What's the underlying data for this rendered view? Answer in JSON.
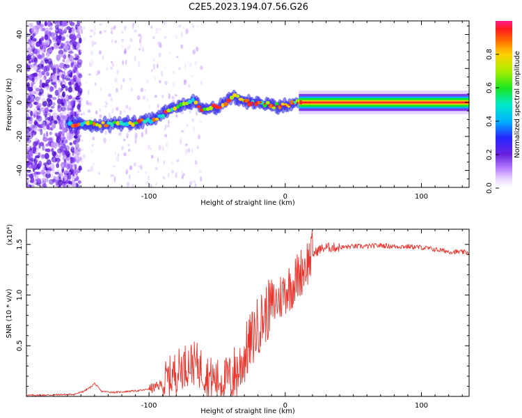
{
  "figure": {
    "title": "C2E5.2023.194.07.56.G26"
  },
  "chart_data": [
    {
      "type": "heatmap",
      "xlabel": "Height of straight line (km)",
      "ylabel": "Frequency (Hz)",
      "xlim": [
        -190,
        135
      ],
      "ylim": [
        -50,
        48
      ],
      "xticks": [
        -100,
        0,
        100
      ],
      "yticks": [
        -40,
        -20,
        0,
        20,
        40
      ],
      "grid": false,
      "ridge": {
        "description_points_x": [
          -160,
          -145,
          -130,
          -110,
          -95,
          -88,
          -80,
          -68,
          -60,
          -52,
          -45,
          -38,
          -32,
          -25,
          -18,
          -10,
          0,
          10,
          20,
          40,
          60,
          80,
          100,
          120,
          135
        ],
        "description_points_y": [
          -13,
          -13,
          -13,
          -12,
          -10,
          -6,
          -3,
          1,
          -4,
          -3,
          -1,
          4,
          1,
          0,
          0,
          -2,
          -2,
          0,
          0,
          0,
          0,
          0,
          0,
          0,
          0
        ]
      },
      "colorbar": {
        "label": "Normalized spectral amplitude",
        "range": [
          0,
          1
        ],
        "ticks": [
          0.0,
          0.2,
          0.4,
          0.6,
          0.8
        ],
        "tick_labels": [
          "0.0",
          "0.2",
          "0.4",
          "0.6",
          "0.8"
        ]
      }
    },
    {
      "type": "line",
      "xlabel": "Height of straight line (km)",
      "ylabel": "SNR (10 * v/v)",
      "y_multiplier": "(x10⁴)",
      "xlim": [
        -190,
        135
      ],
      "ylim": [
        0,
        1.65
      ],
      "xticks": [
        -100,
        0,
        100
      ],
      "yticks": [
        0.5,
        1.0,
        1.5
      ],
      "ytick_labels": [
        "0.5",
        "1.0",
        "1.5"
      ],
      "color": "#e8322a",
      "series": [
        {
          "name": "SNR",
          "x": [
            -190,
            -170,
            -155,
            -148,
            -143,
            -140,
            -135,
            -125,
            -115,
            -105,
            -95,
            -88,
            -82,
            -75,
            -70,
            -65,
            -60,
            -55,
            -50,
            -45,
            -40,
            -35,
            -30,
            -25,
            -20,
            -15,
            -10,
            -5,
            0,
            5,
            10,
            15,
            20,
            25,
            30,
            40,
            50,
            60,
            70,
            80,
            90,
            100,
            110,
            120,
            135
          ],
          "y": [
            0.01,
            0.015,
            0.02,
            0.05,
            0.09,
            0.13,
            0.05,
            0.04,
            0.05,
            0.06,
            0.09,
            0.14,
            0.22,
            0.3,
            0.33,
            0.32,
            0.25,
            0.18,
            0.16,
            0.17,
            0.2,
            0.24,
            0.4,
            0.55,
            0.7,
            0.8,
            0.9,
            0.95,
            1.05,
            1.1,
            1.2,
            1.3,
            1.4,
            1.45,
            1.47,
            1.47,
            1.48,
            1.48,
            1.49,
            1.48,
            1.48,
            1.47,
            1.45,
            1.43,
            1.42
          ]
        }
      ]
    }
  ]
}
